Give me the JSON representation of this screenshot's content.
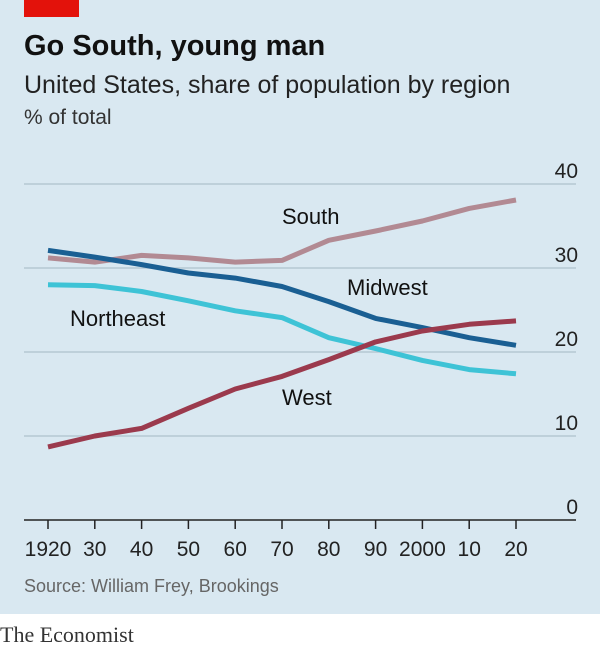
{
  "header": {
    "title": "Go South, young man",
    "subtitle": "United States, share of population by region",
    "unit": "% of total"
  },
  "footer": {
    "source": "Source: William Frey, Brookings",
    "brand": "The Economist"
  },
  "colors": {
    "panel_background": "#d9e8f1",
    "brand_red": "#e3120b",
    "gridline": "#b6c7d3",
    "axis": "#222222"
  },
  "chart_data": {
    "type": "line",
    "title": "Go South, young man",
    "subtitle": "United States, share of population by region",
    "ylabel": "% of total",
    "xlabel": "",
    "x": [
      1920,
      1930,
      1940,
      1950,
      1960,
      1970,
      1980,
      1990,
      2000,
      2010,
      2020
    ],
    "x_tick_labels": [
      "1920",
      "30",
      "40",
      "50",
      "60",
      "70",
      "80",
      "90",
      "2000",
      "10",
      "20"
    ],
    "ylim": [
      0,
      40
    ],
    "y_ticks": [
      0,
      10,
      20,
      30,
      40
    ],
    "y_tick_labels": [
      "0",
      "10",
      "20",
      "30",
      "40"
    ],
    "grid": true,
    "legend": "direct labels on lines",
    "series": [
      {
        "name": "South",
        "color": "#b28a93",
        "values": [
          31.2,
          30.7,
          31.5,
          31.2,
          30.7,
          30.9,
          33.3,
          34.4,
          35.6,
          37.1,
          38.1
        ]
      },
      {
        "name": "Midwest",
        "color": "#1a5f93",
        "values": [
          32.1,
          31.3,
          30.4,
          29.4,
          28.8,
          27.8,
          26.0,
          24.0,
          22.9,
          21.7,
          20.8
        ]
      },
      {
        "name": "Northeast",
        "color": "#3ec3d6",
        "values": [
          28.0,
          27.9,
          27.2,
          26.1,
          24.9,
          24.1,
          21.7,
          20.4,
          19.0,
          17.9,
          17.4
        ]
      },
      {
        "name": "West",
        "color": "#9b3a4d",
        "values": [
          8.7,
          10.0,
          10.9,
          13.3,
          15.6,
          17.1,
          19.1,
          21.2,
          22.5,
          23.3,
          23.7
        ]
      }
    ]
  }
}
